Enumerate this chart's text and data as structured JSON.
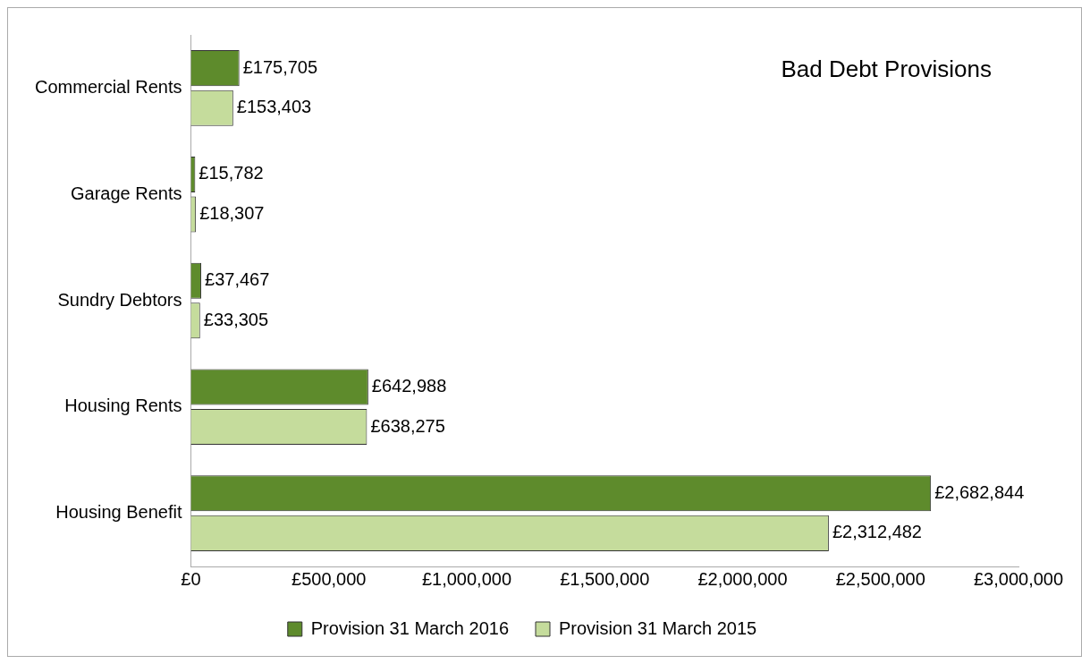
{
  "chart_data": {
    "type": "bar",
    "orientation": "horizontal",
    "title": "Bad Debt Provisions",
    "categories": [
      "Commercial Rents",
      "Garage Rents",
      "Sundry Debtors",
      "Housing Rents",
      "Housing Benefit"
    ],
    "series": [
      {
        "name": "Provision 31 March 2016",
        "color": "#5e8b2c",
        "values": [
          175705,
          15782,
          37467,
          642988,
          2682844
        ],
        "value_labels": [
          "£175,705",
          "£15,782",
          "£37,467",
          "£642,988",
          "£2,682,844"
        ]
      },
      {
        "name": "Provision 31 March 2015",
        "color": "#c5dc9c",
        "values": [
          153403,
          18307,
          33305,
          638275,
          2312482
        ],
        "value_labels": [
          "£153,403",
          "£18,307",
          "£33,305",
          "£638,275",
          "£2,312,482"
        ]
      }
    ],
    "xlim": [
      0,
      3000000
    ],
    "xticks": [
      {
        "value": 0,
        "label": "£0"
      },
      {
        "value": 500000,
        "label": "£500,000"
      },
      {
        "value": 1000000,
        "label": "£1,000,000"
      },
      {
        "value": 1500000,
        "label": "£1,500,000"
      },
      {
        "value": 2000000,
        "label": "£2,000,000"
      },
      {
        "value": 2500000,
        "label": "£2,500,000"
      },
      {
        "value": 3000000,
        "label": "£3,000,000"
      }
    ],
    "grid": false,
    "legend": "bottom"
  }
}
